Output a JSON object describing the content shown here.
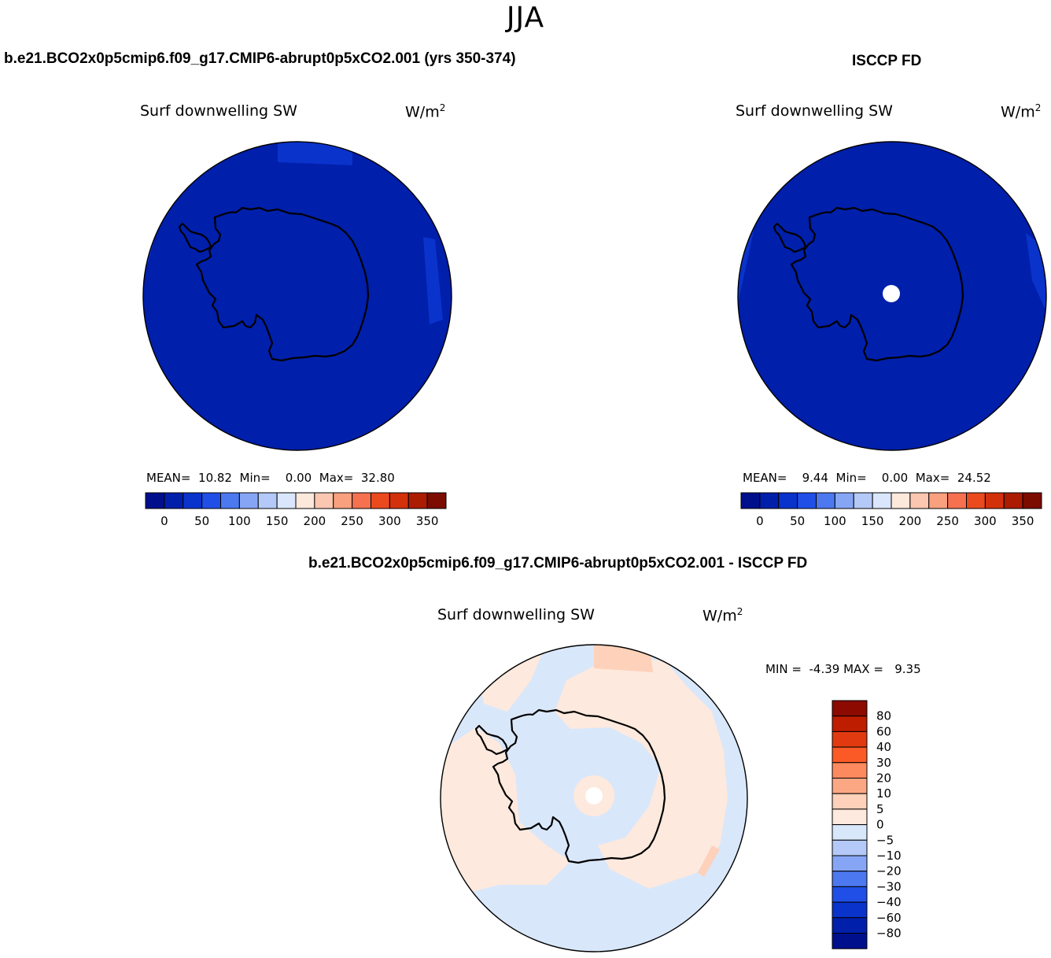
{
  "season": "JJA",
  "panels": [
    {
      "title": "b.e21.BCO2x0p5cmip6.f09_g17.CMIP6-abrupt0p5xCO2.001 (yrs 350-374)",
      "variable": "Surf downwelling SW",
      "units_base": "W/m",
      "units_exp": "2",
      "stats": {
        "mean_label": "MEAN=",
        "mean": "10.82",
        "min_label": "Min=",
        "min": "0.00",
        "max_label": "Max=",
        "max": "32.80"
      }
    },
    {
      "title": "ISCCP FD",
      "variable": "Surf downwelling SW",
      "units_base": "W/m",
      "units_exp": "2",
      "stats": {
        "mean_label": "MEAN=",
        "mean": "9.44",
        "min_label": "Min=",
        "min": "0.00",
        "max_label": "Max=",
        "max": "24.52"
      }
    },
    {
      "title": "b.e21.BCO2x0p5cmip6.f09_g17.CMIP6-abrupt0p5xCO2.001 - ISCCP FD",
      "variable": "Surf downwelling SW",
      "units_base": "W/m",
      "units_exp": "2",
      "stats": {
        "min_label": "MIN =",
        "min": "-4.39",
        "max_label": "MAX =",
        "max": "9.35"
      }
    }
  ],
  "chart_data": [
    {
      "type": "heatmap",
      "projection": "south-polar-stereographic",
      "title": "b.e21.BCO2x0p5cmip6.f09_g17.CMIP6-abrupt0p5xCO2.001 (yrs 350-374)",
      "field": "Surf downwelling SW",
      "units": "W/m2",
      "colorbar": {
        "orientation": "horizontal",
        "levels": [
          0,
          25,
          50,
          75,
          100,
          125,
          150,
          175,
          200,
          225,
          250,
          275,
          300,
          325,
          350
        ],
        "tick_labels": [
          "0",
          "50",
          "100",
          "150",
          "200",
          "250",
          "300",
          "350"
        ],
        "colors": [
          "#000f8c",
          "#001fab",
          "#0a33cc",
          "#1f4fe6",
          "#4c78f0",
          "#86a6f5",
          "#b4c9f8",
          "#dae6fb",
          "#fde8dc",
          "#fcc7b0",
          "#f9a07e",
          "#f57150",
          "#ea4a1e",
          "#d2310c",
          "#ac1c02",
          "#7d0c00"
        ]
      },
      "stats": {
        "mean": 10.82,
        "min": 0.0,
        "max": 32.8
      }
    },
    {
      "type": "heatmap",
      "projection": "south-polar-stereographic",
      "title": "ISCCP FD",
      "field": "Surf downwelling SW",
      "units": "W/m2",
      "colorbar": {
        "orientation": "horizontal",
        "levels": [
          0,
          25,
          50,
          75,
          100,
          125,
          150,
          175,
          200,
          225,
          250,
          275,
          300,
          325,
          350
        ],
        "tick_labels": [
          "0",
          "50",
          "100",
          "150",
          "200",
          "250",
          "300",
          "350"
        ],
        "colors": [
          "#000f8c",
          "#001fab",
          "#0a33cc",
          "#1f4fe6",
          "#4c78f0",
          "#86a6f5",
          "#b4c9f8",
          "#dae6fb",
          "#fde8dc",
          "#fcc7b0",
          "#f9a07e",
          "#f57150",
          "#ea4a1e",
          "#d2310c",
          "#ac1c02",
          "#7d0c00"
        ]
      },
      "stats": {
        "mean": 9.44,
        "min": 0.0,
        "max": 24.52
      }
    },
    {
      "type": "heatmap",
      "projection": "south-polar-stereographic",
      "title": "b.e21.BCO2x0p5cmip6.f09_g17.CMIP6-abrupt0p5xCO2.001 - ISCCP FD",
      "field": "Surf downwelling SW",
      "units": "W/m2",
      "colorbar": {
        "orientation": "vertical",
        "levels": [
          -80,
          -60,
          -40,
          -30,
          -20,
          -10,
          -5,
          0,
          5,
          10,
          20,
          30,
          40,
          60,
          80
        ],
        "tick_labels": [
          "80",
          "60",
          "40",
          "30",
          "20",
          "10",
          "5",
          "0",
          "−5",
          "−10",
          "−20",
          "−30",
          "−40",
          "−60",
          "−80"
        ],
        "colors_top_to_bottom": [
          "#8c0a00",
          "#bf1d00",
          "#e23a10",
          "#fb5a26",
          "#fd8a5e",
          "#fca784",
          "#fdd1ba",
          "#fde9dd",
          "#d9e7fb",
          "#b4c9f8",
          "#86a6f5",
          "#4c78f0",
          "#1f4fe6",
          "#0a33cc",
          "#001fab",
          "#000f8c"
        ]
      },
      "stats": {
        "min": -4.39,
        "max": 9.35
      }
    }
  ]
}
